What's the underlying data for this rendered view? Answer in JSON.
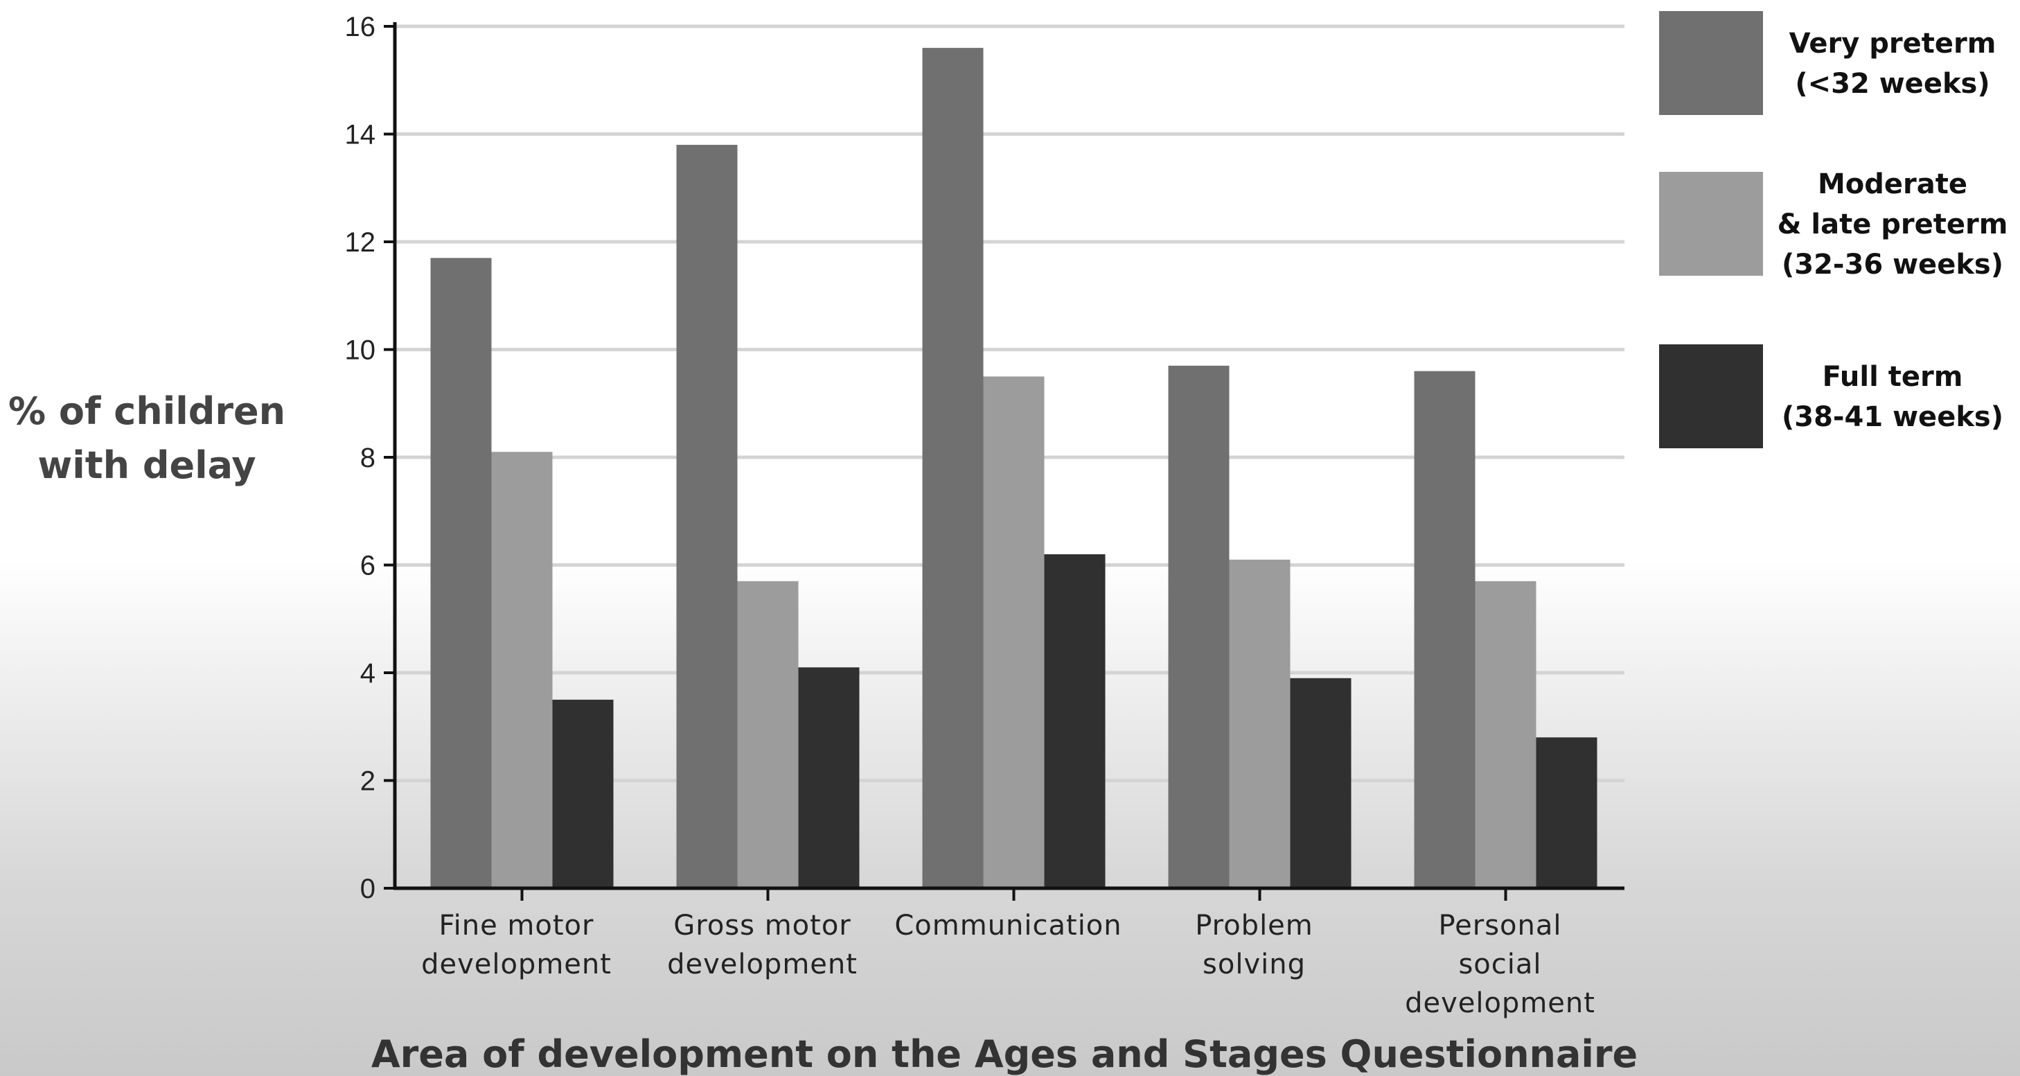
{
  "chart_data": {
    "type": "bar",
    "categories": [
      [
        "Fine motor",
        "development"
      ],
      [
        "Gross motor",
        "development"
      ],
      [
        "Communication"
      ],
      [
        "Problem",
        "solving"
      ],
      [
        "Personal",
        "social",
        "development"
      ]
    ],
    "series": [
      {
        "name": [
          "Very preterm",
          "(<32 weeks)"
        ],
        "color": "#707070",
        "values": [
          11.7,
          13.8,
          15.6,
          9.7,
          9.6
        ]
      },
      {
        "name": [
          "Moderate",
          "& late preterm",
          "(32-36 weeks)"
        ],
        "color": "#9c9c9c",
        "values": [
          8.1,
          5.7,
          9.5,
          6.1,
          5.7
        ]
      },
      {
        "name": [
          "Full term",
          "(38-41 weeks)"
        ],
        "color": "#303030",
        "values": [
          3.5,
          4.1,
          6.2,
          3.9,
          2.8
        ]
      }
    ],
    "ylabel": [
      "% of children",
      "with delay"
    ],
    "xlabel": "Area of development on the Ages and Stages Questionnaire",
    "ylim": [
      0,
      16
    ],
    "yticks": [
      "0",
      "2",
      "4",
      "6",
      "8",
      "10",
      "12",
      "14",
      "16"
    ],
    "grid": true,
    "legend_position": "right"
  }
}
